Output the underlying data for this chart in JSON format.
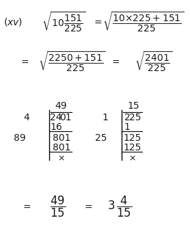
{
  "bg_color": "#ffffff",
  "text_color": "#1a1a1a",
  "font_size": 10,
  "figsize": [
    2.78,
    3.35
  ],
  "dpi": 100
}
